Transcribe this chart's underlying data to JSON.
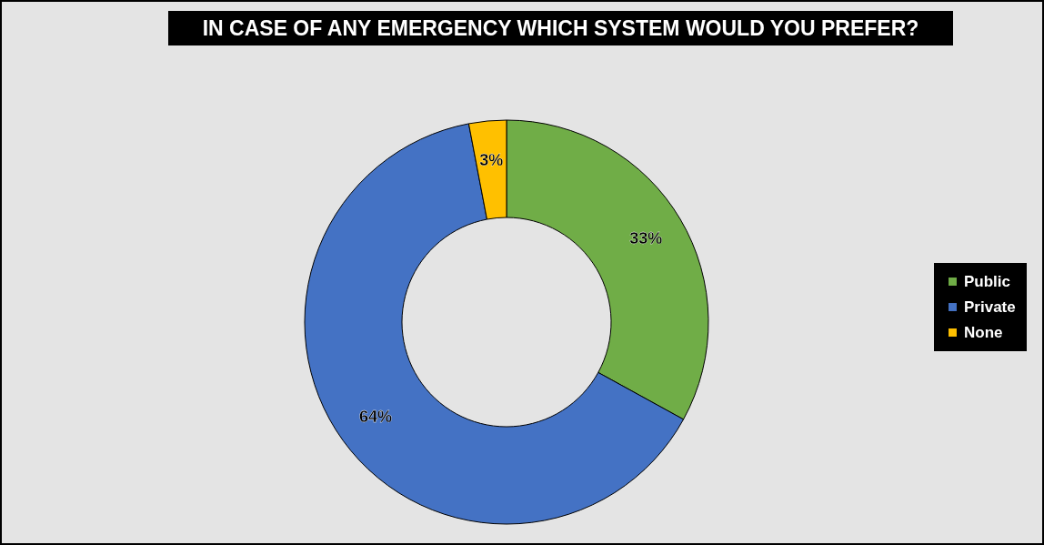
{
  "chart_data": {
    "type": "donut",
    "title": "IN CASE OF ANY EMERGENCY WHICH SYSTEM WOULD YOU PREFER?",
    "categories": [
      "Public",
      "Private",
      "None"
    ],
    "values": [
      33,
      64,
      3
    ],
    "colors": [
      "#70ad47",
      "#4472c4",
      "#ffc000"
    ],
    "value_labels": [
      "33%",
      "64%",
      "3%"
    ],
    "legend": "right"
  }
}
